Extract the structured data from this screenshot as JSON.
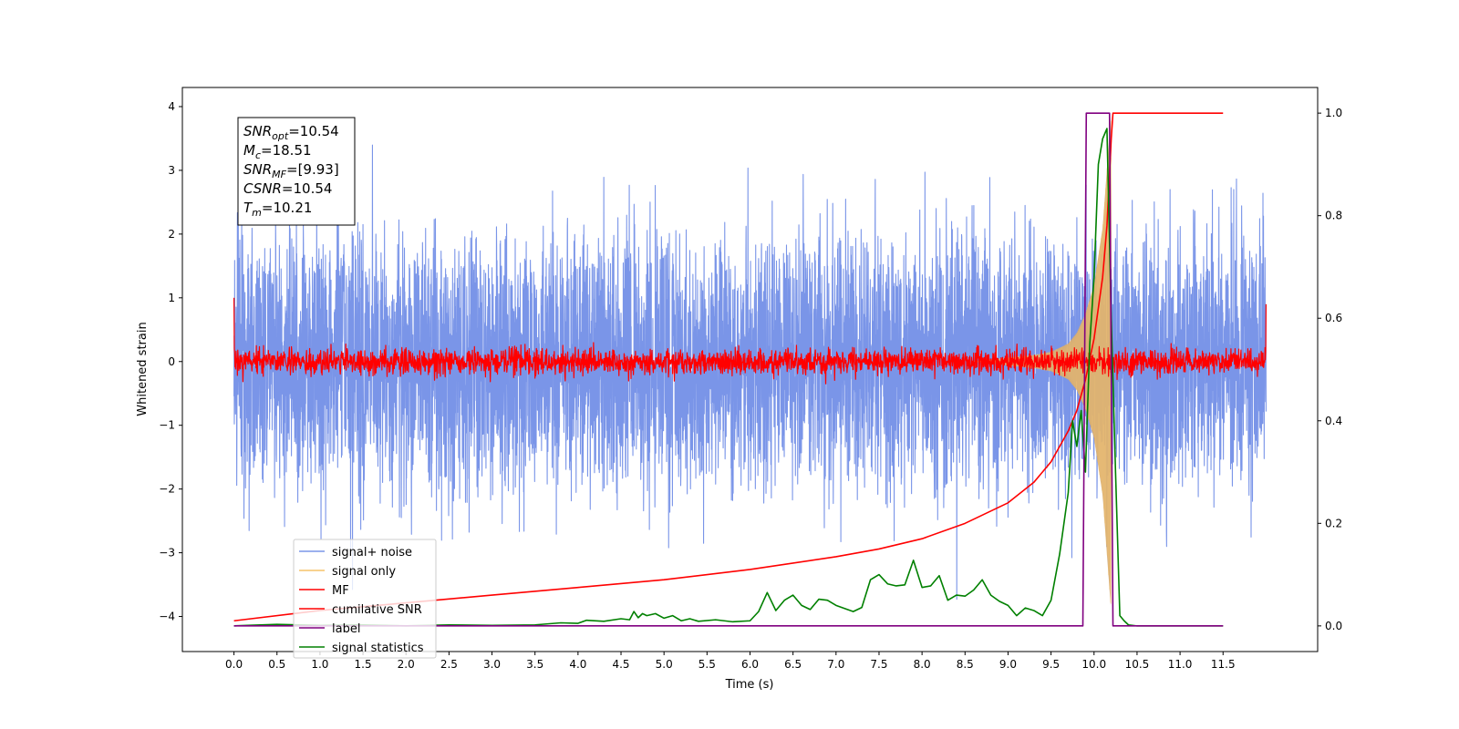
{
  "chart_data": {
    "type": "line",
    "title": "",
    "xlabel": "Time (s)",
    "ylabel": "Whitened strain",
    "y2label": "",
    "xlim": [
      -0.6,
      12.6
    ],
    "ylim": [
      -4.55,
      4.3
    ],
    "y2lim": [
      -0.05,
      1.05
    ],
    "x_ticks": [
      0.0,
      0.5,
      1.0,
      1.5,
      2.0,
      2.5,
      3.0,
      3.5,
      4.0,
      4.5,
      5.0,
      5.5,
      6.0,
      6.5,
      7.0,
      7.5,
      8.0,
      8.5,
      9.0,
      9.5,
      10.0,
      10.5,
      11.0,
      11.5
    ],
    "x_tick_labels": [
      "0.0",
      "0.5",
      "1.0",
      "1.5",
      "2.0",
      "2.5",
      "3.0",
      "3.5",
      "4.0",
      "4.5",
      "5.0",
      "5.5",
      "6.0",
      "6.5",
      "7.0",
      "7.5",
      "8.0",
      "8.5",
      "9.0",
      "9.5",
      "10.0",
      "10.5",
      "11.0",
      "11.5"
    ],
    "y_ticks": [
      -4,
      -3,
      -2,
      -1,
      0,
      1,
      2,
      3,
      4
    ],
    "y_tick_labels": [
      "−4",
      "−3",
      "−2",
      "−1",
      "0",
      "1",
      "2",
      "3",
      "4"
    ],
    "y2_ticks": [
      0.0,
      0.2,
      0.4,
      0.6,
      0.8,
      1.0
    ],
    "y2_tick_labels": [
      "0.0",
      "0.2",
      "0.4",
      "0.6",
      "0.8",
      "1.0"
    ],
    "grid": false,
    "legend_position": "lower-left",
    "info_box": {
      "position": "top-left",
      "lines": [
        {
          "base": "SNR",
          "sub": "opt",
          "rest": "=10.54"
        },
        {
          "base": "M",
          "sub": "c",
          "rest": "=18.51"
        },
        {
          "base": "SNR",
          "sub": "MF",
          "rest": "=[9.93]"
        },
        {
          "base": "CSNR",
          "sub": "",
          "rest": "=10.54"
        },
        {
          "base": "T",
          "sub": "m",
          "rest": "=10.21"
        }
      ]
    },
    "series": [
      {
        "name": "signal+ noise",
        "color": "#7a95e8",
        "axis": "left",
        "kind": "noise",
        "x_range": [
          0.0,
          12.0
        ],
        "amplitude_std": 1.0,
        "y_extent": [
          -3.9,
          3.95
        ]
      },
      {
        "name": "signal only",
        "color": "#f5c36a",
        "fill_color": "#c8a06e",
        "axis": "left",
        "kind": "chirp",
        "merger_time": 10.21,
        "envelope": [
          [
            8.6,
            0.0
          ],
          [
            9.0,
            0.06
          ],
          [
            9.3,
            0.1
          ],
          [
            9.5,
            0.15
          ],
          [
            9.7,
            0.28
          ],
          [
            9.8,
            0.45
          ],
          [
            9.9,
            0.75
          ],
          [
            10.0,
            1.2
          ],
          [
            10.1,
            2.1
          ],
          [
            10.2,
            3.95
          ]
        ]
      },
      {
        "name": "MF",
        "color": "#ff0000",
        "axis": "left",
        "kind": "noise",
        "x_range": [
          0.0,
          12.0
        ],
        "amplitude_std": 0.1,
        "start_value": 1.0,
        "end_value": 0.9
      },
      {
        "name": "cumilative SNR",
        "color": "#ff0000",
        "axis": "right",
        "x": [
          0.0,
          1.0,
          2.0,
          3.0,
          4.0,
          5.0,
          6.0,
          7.0,
          7.5,
          8.0,
          8.5,
          9.0,
          9.3,
          9.5,
          9.7,
          9.8,
          9.9,
          10.0,
          10.1,
          10.15,
          10.2,
          10.22,
          11.5
        ],
        "values": [
          0.01,
          0.03,
          0.045,
          0.06,
          0.075,
          0.09,
          0.11,
          0.135,
          0.15,
          0.17,
          0.2,
          0.24,
          0.28,
          0.32,
          0.38,
          0.42,
          0.48,
          0.56,
          0.68,
          0.78,
          0.95,
          1.0,
          1.0
        ]
      },
      {
        "name": "label",
        "color": "#800080",
        "axis": "right",
        "x": [
          0.0,
          9.87,
          9.91,
          10.18,
          10.22,
          11.5
        ],
        "values": [
          0.0,
          0.0,
          1.0,
          1.0,
          0.0,
          0.0
        ]
      },
      {
        "name": "signal statistics",
        "color": "#008000",
        "axis": "right",
        "x": [
          0.0,
          0.5,
          1.0,
          1.5,
          2.0,
          2.5,
          3.0,
          3.5,
          3.8,
          4.0,
          4.1,
          4.3,
          4.5,
          4.6,
          4.65,
          4.7,
          4.75,
          4.8,
          4.9,
          5.0,
          5.1,
          5.2,
          5.3,
          5.4,
          5.6,
          5.8,
          6.0,
          6.1,
          6.2,
          6.3,
          6.4,
          6.5,
          6.6,
          6.7,
          6.8,
          6.9,
          7.0,
          7.2,
          7.3,
          7.4,
          7.5,
          7.6,
          7.7,
          7.8,
          7.9,
          8.0,
          8.1,
          8.2,
          8.3,
          8.4,
          8.5,
          8.6,
          8.7,
          8.8,
          8.9,
          9.0,
          9.1,
          9.2,
          9.3,
          9.4,
          9.5,
          9.6,
          9.7,
          9.75,
          9.8,
          9.85,
          9.9,
          9.95,
          10.0,
          10.05,
          10.1,
          10.15,
          10.2,
          10.25,
          10.3,
          10.35,
          10.4,
          10.5,
          10.6,
          11.0,
          11.5
        ],
        "values": [
          0.0,
          0.003,
          0.001,
          0.002,
          0.0,
          0.002,
          0.001,
          0.002,
          0.006,
          0.005,
          0.011,
          0.009,
          0.014,
          0.012,
          0.028,
          0.016,
          0.024,
          0.02,
          0.024,
          0.015,
          0.02,
          0.01,
          0.014,
          0.009,
          0.012,
          0.008,
          0.01,
          0.028,
          0.065,
          0.03,
          0.05,
          0.06,
          0.04,
          0.032,
          0.052,
          0.05,
          0.04,
          0.028,
          0.036,
          0.09,
          0.1,
          0.082,
          0.078,
          0.08,
          0.128,
          0.075,
          0.078,
          0.098,
          0.05,
          0.06,
          0.058,
          0.07,
          0.09,
          0.06,
          0.048,
          0.04,
          0.02,
          0.035,
          0.03,
          0.02,
          0.05,
          0.14,
          0.26,
          0.4,
          0.35,
          0.42,
          0.3,
          0.55,
          0.68,
          0.9,
          0.95,
          0.97,
          0.6,
          0.3,
          0.02,
          0.01,
          0.002,
          0.0,
          0.0,
          0.0,
          0.0
        ]
      }
    ]
  }
}
